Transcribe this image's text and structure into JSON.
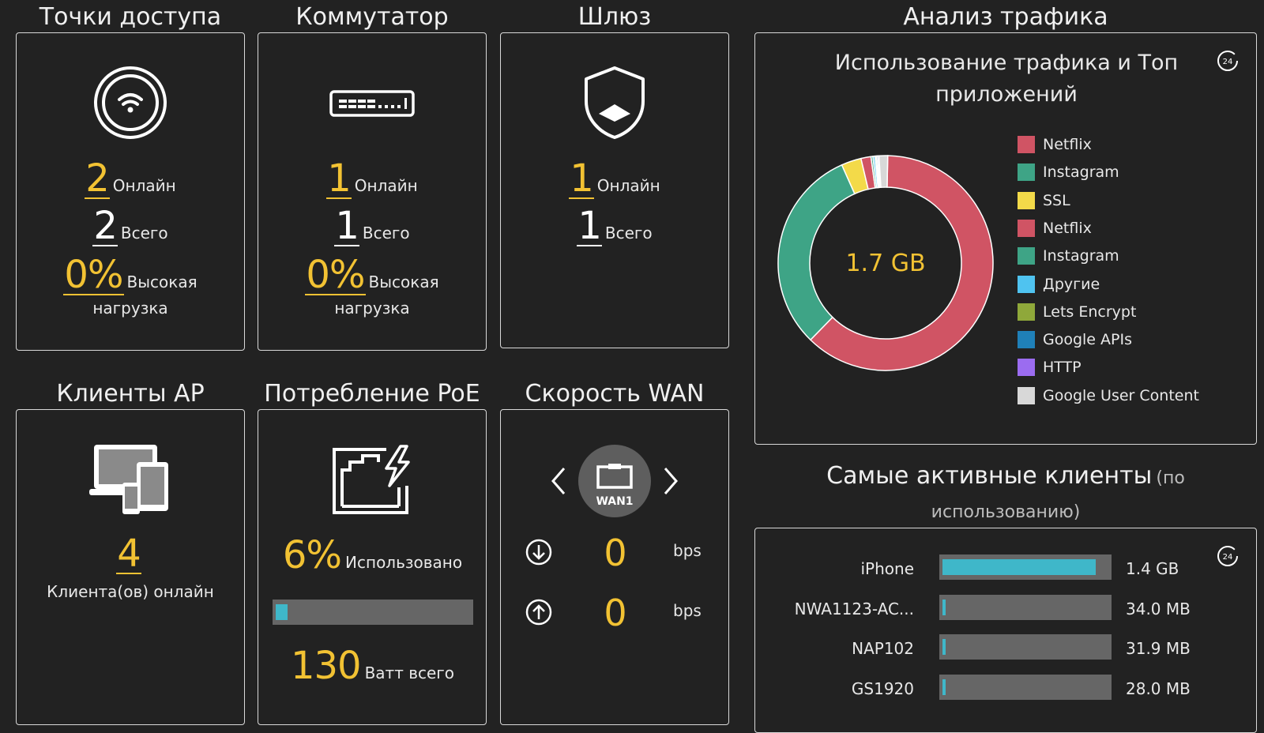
{
  "access_points": {
    "title": "Точки доступа",
    "online_count": "2",
    "online_label": "Онлайн",
    "total_count": "2",
    "total_label": "Всего",
    "load_percent": "0%",
    "load_label": "Высокая",
    "load_label_2": "нагрузка"
  },
  "switch": {
    "title": "Коммутатор",
    "online_count": "1",
    "online_label": "Онлайн",
    "total_count": "1",
    "total_label": "Всего",
    "load_percent": "0%",
    "load_label": "Высокая",
    "load_label_2": "нагрузка"
  },
  "gateway": {
    "title": "Шлюз",
    "online_count": "1",
    "online_label": "Онлайн",
    "total_count": "1",
    "total_label": "Всего"
  },
  "ap_clients": {
    "title": "Клиенты AP",
    "count": "4",
    "label": "Клиента(ов) онлайн"
  },
  "poe": {
    "title": "Потребление PoE",
    "used_percent": "6%",
    "used_label": "Использовано",
    "used_fraction": 0.06,
    "total_watts": "130",
    "total_label": "Ватт всего"
  },
  "wan_speed": {
    "title": "Скорость WAN",
    "port_label": "WAN1",
    "down_value": "0",
    "down_unit": "bps",
    "up_value": "0",
    "up_unit": "bps"
  },
  "traffic": {
    "section_title": "Анализ трафика",
    "chart_title_1": "Использование трафика и Топ",
    "chart_title_2": "приложений",
    "center_label": "1.7 GB"
  },
  "chart_data": {
    "type": "pie",
    "center_label": "1.7 GB",
    "legend_placement": "right",
    "slices": [
      {
        "label": "Netflix",
        "value": 0.62,
        "color": "#d05464"
      },
      {
        "label": "Instagram",
        "value": 0.31,
        "color": "#3ea486"
      },
      {
        "label": "SSL",
        "value": 0.03,
        "color": "#f3da49"
      },
      {
        "label": "Netflix",
        "value": 0.015,
        "color": "#d05464"
      },
      {
        "label": "Instagram",
        "value": 0.003,
        "color": "#3ea486"
      },
      {
        "label": "Другие",
        "value": 0.003,
        "color": "#4fc3f0"
      },
      {
        "label": "Lets Encrypt",
        "value": 0.002,
        "color": "#8fa83a"
      },
      {
        "label": "Google APIs",
        "value": 0.002,
        "color": "#1f80b8"
      },
      {
        "label": "HTTP",
        "value": 0.002,
        "color": "#9b6cf0"
      },
      {
        "label": "Google User Content",
        "value": 0.013,
        "color": "#d8d8d8"
      }
    ]
  },
  "top_clients": {
    "title": "Самые активные клиенты",
    "title_suffix": "(по",
    "title_line_2": "использованию)",
    "rows": [
      {
        "name": "iPhone",
        "value": "1.4 GB",
        "fraction": 0.95
      },
      {
        "name": "NWA1123-AC...",
        "value": "34.0 MB",
        "fraction": 0.02
      },
      {
        "name": "NAP102",
        "value": "31.9 MB",
        "fraction": 0.02
      },
      {
        "name": "GS1920",
        "value": "28.0 MB",
        "fraction": 0.015
      }
    ]
  },
  "icons": {
    "ap": "wifi-icon",
    "switch": "switch-icon",
    "gateway": "shield-icon",
    "clients": "devices-icon",
    "poe": "poe-port-icon",
    "refresh": "refresh-24h-icon"
  }
}
